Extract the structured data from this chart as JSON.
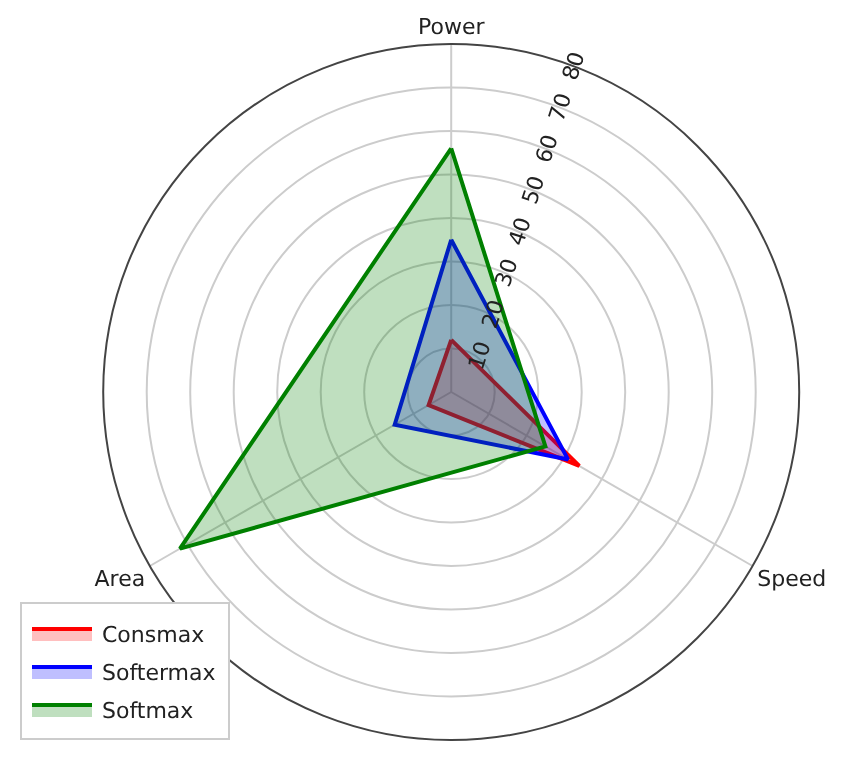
{
  "chart_data": {
    "type": "radar",
    "categories": [
      "Power",
      "Speed",
      "Area"
    ],
    "series": [
      {
        "name": "Consmax",
        "color": "#ff0000",
        "values": [
          12,
          34,
          6
        ]
      },
      {
        "name": "Softermax",
        "color": "#0000ff",
        "values": [
          35,
          31,
          15
        ]
      },
      {
        "name": "Softmax",
        "color": "#008000",
        "values": [
          56,
          25,
          72
        ]
      }
    ],
    "ylim": [
      0,
      80
    ],
    "yticks": [
      10,
      20,
      30,
      40,
      50,
      60,
      70,
      80
    ],
    "grid": true,
    "legend": "bottom left",
    "marker": "none",
    "line_style": "solid"
  }
}
